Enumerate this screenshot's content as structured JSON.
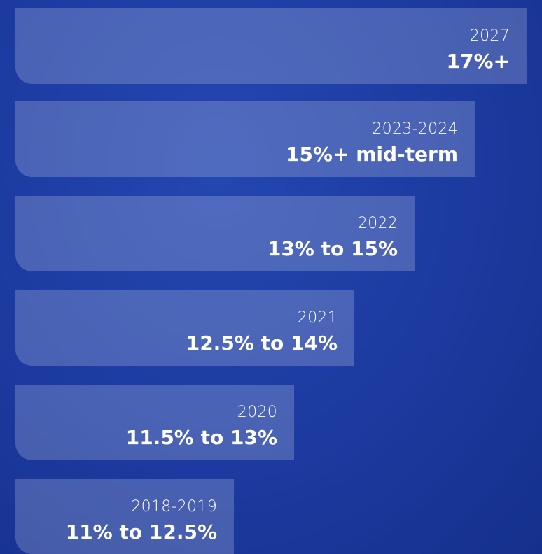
{
  "items": [
    {
      "year": "2027",
      "label": "17%+"
    },
    {
      "year": "2023-2024",
      "label": "15%+ mid-term"
    },
    {
      "year": "2022",
      "label": "13% to 15%"
    },
    {
      "year": "2021",
      "label": "12.5% to 14%"
    },
    {
      "year": "2020",
      "label": "11.5% to 13%"
    },
    {
      "year": "2018-2019",
      "label": "11% to 12.5%"
    }
  ]
}
